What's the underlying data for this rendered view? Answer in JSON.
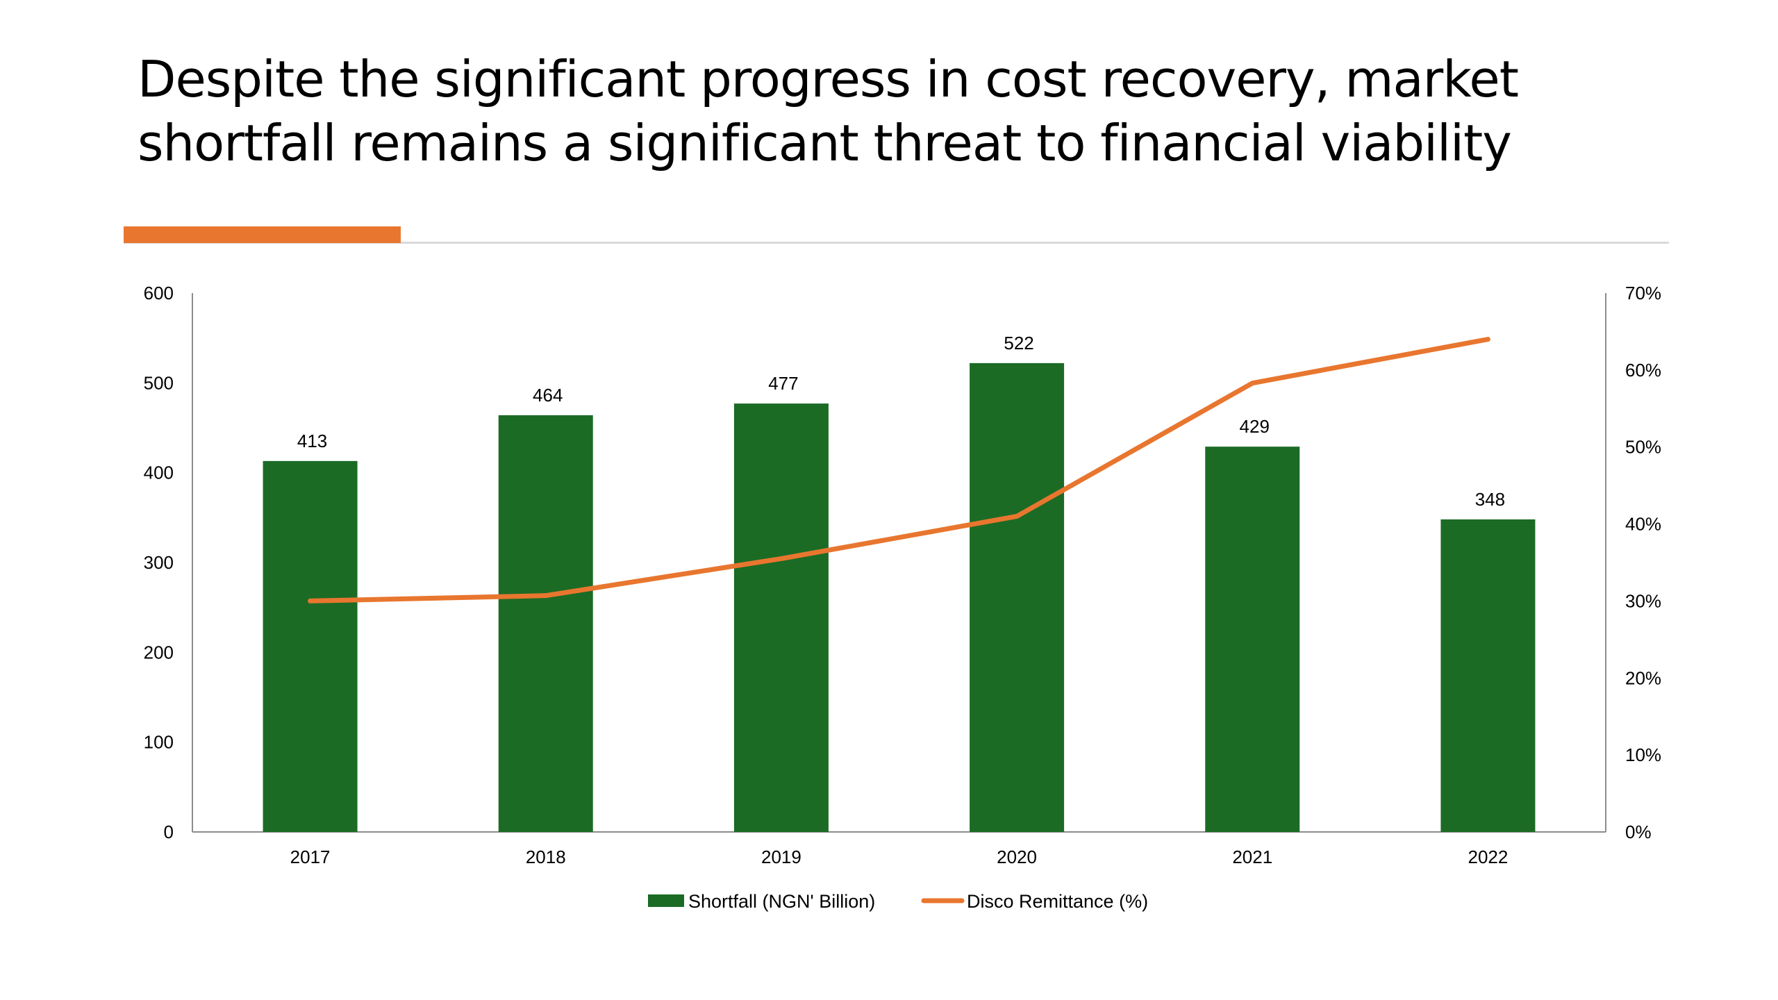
{
  "slide": {
    "title_line1": "Despite the significant progress in cost recovery, market",
    "title_line2": "shortfall remains a significant threat to financial viability",
    "accent_color": "#E8762F",
    "rule_color": "#d9d9d9"
  },
  "chart_data": {
    "type": "bar",
    "categories": [
      "2017",
      "2018",
      "2019",
      "2020",
      "2021",
      "2022"
    ],
    "series": [
      {
        "name": "Shortfall (NGN' Billion)",
        "type": "bar",
        "axis": "left",
        "color": "#1B6B25",
        "values": [
          413,
          464,
          477,
          522,
          429,
          348
        ],
        "data_labels": [
          "413",
          "464",
          "477",
          "522",
          "429",
          "348"
        ]
      },
      {
        "name": "Disco Remittance (%)",
        "type": "line",
        "axis": "right",
        "color": "#E8762F",
        "values": [
          30,
          30.7,
          35.5,
          41,
          58.3,
          64
        ]
      }
    ],
    "ylim": [
      0,
      600
    ],
    "y_ticks": [
      "0",
      "100",
      "200",
      "300",
      "400",
      "500",
      "600"
    ],
    "y2lim": [
      0,
      70
    ],
    "y2_ticks": [
      "0%",
      "10%",
      "20%",
      "30%",
      "40%",
      "50%",
      "60%",
      "70%"
    ],
    "grid": false,
    "legend_position": "bottom"
  }
}
